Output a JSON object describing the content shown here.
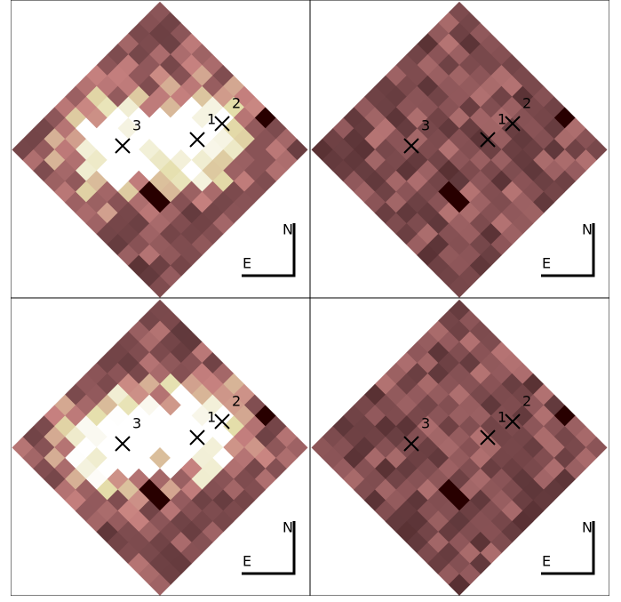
{
  "panels": [
    {
      "markers": [
        {
          "label": "1"
        },
        {
          "label": "2"
        },
        {
          "label": "3"
        }
      ],
      "north": "N",
      "east": "E"
    },
    {
      "markers": [
        {
          "label": "1"
        },
        {
          "label": "2"
        },
        {
          "label": "3"
        }
      ],
      "north": "N",
      "east": "E"
    },
    {
      "markers": [
        {
          "label": "1"
        },
        {
          "label": "2"
        },
        {
          "label": "3"
        }
      ],
      "north": "N",
      "east": "E"
    },
    {
      "markers": [
        {
          "label": "1"
        },
        {
          "label": "2"
        },
        {
          "label": "3"
        }
      ],
      "north": "N",
      "east": "E"
    }
  ]
}
